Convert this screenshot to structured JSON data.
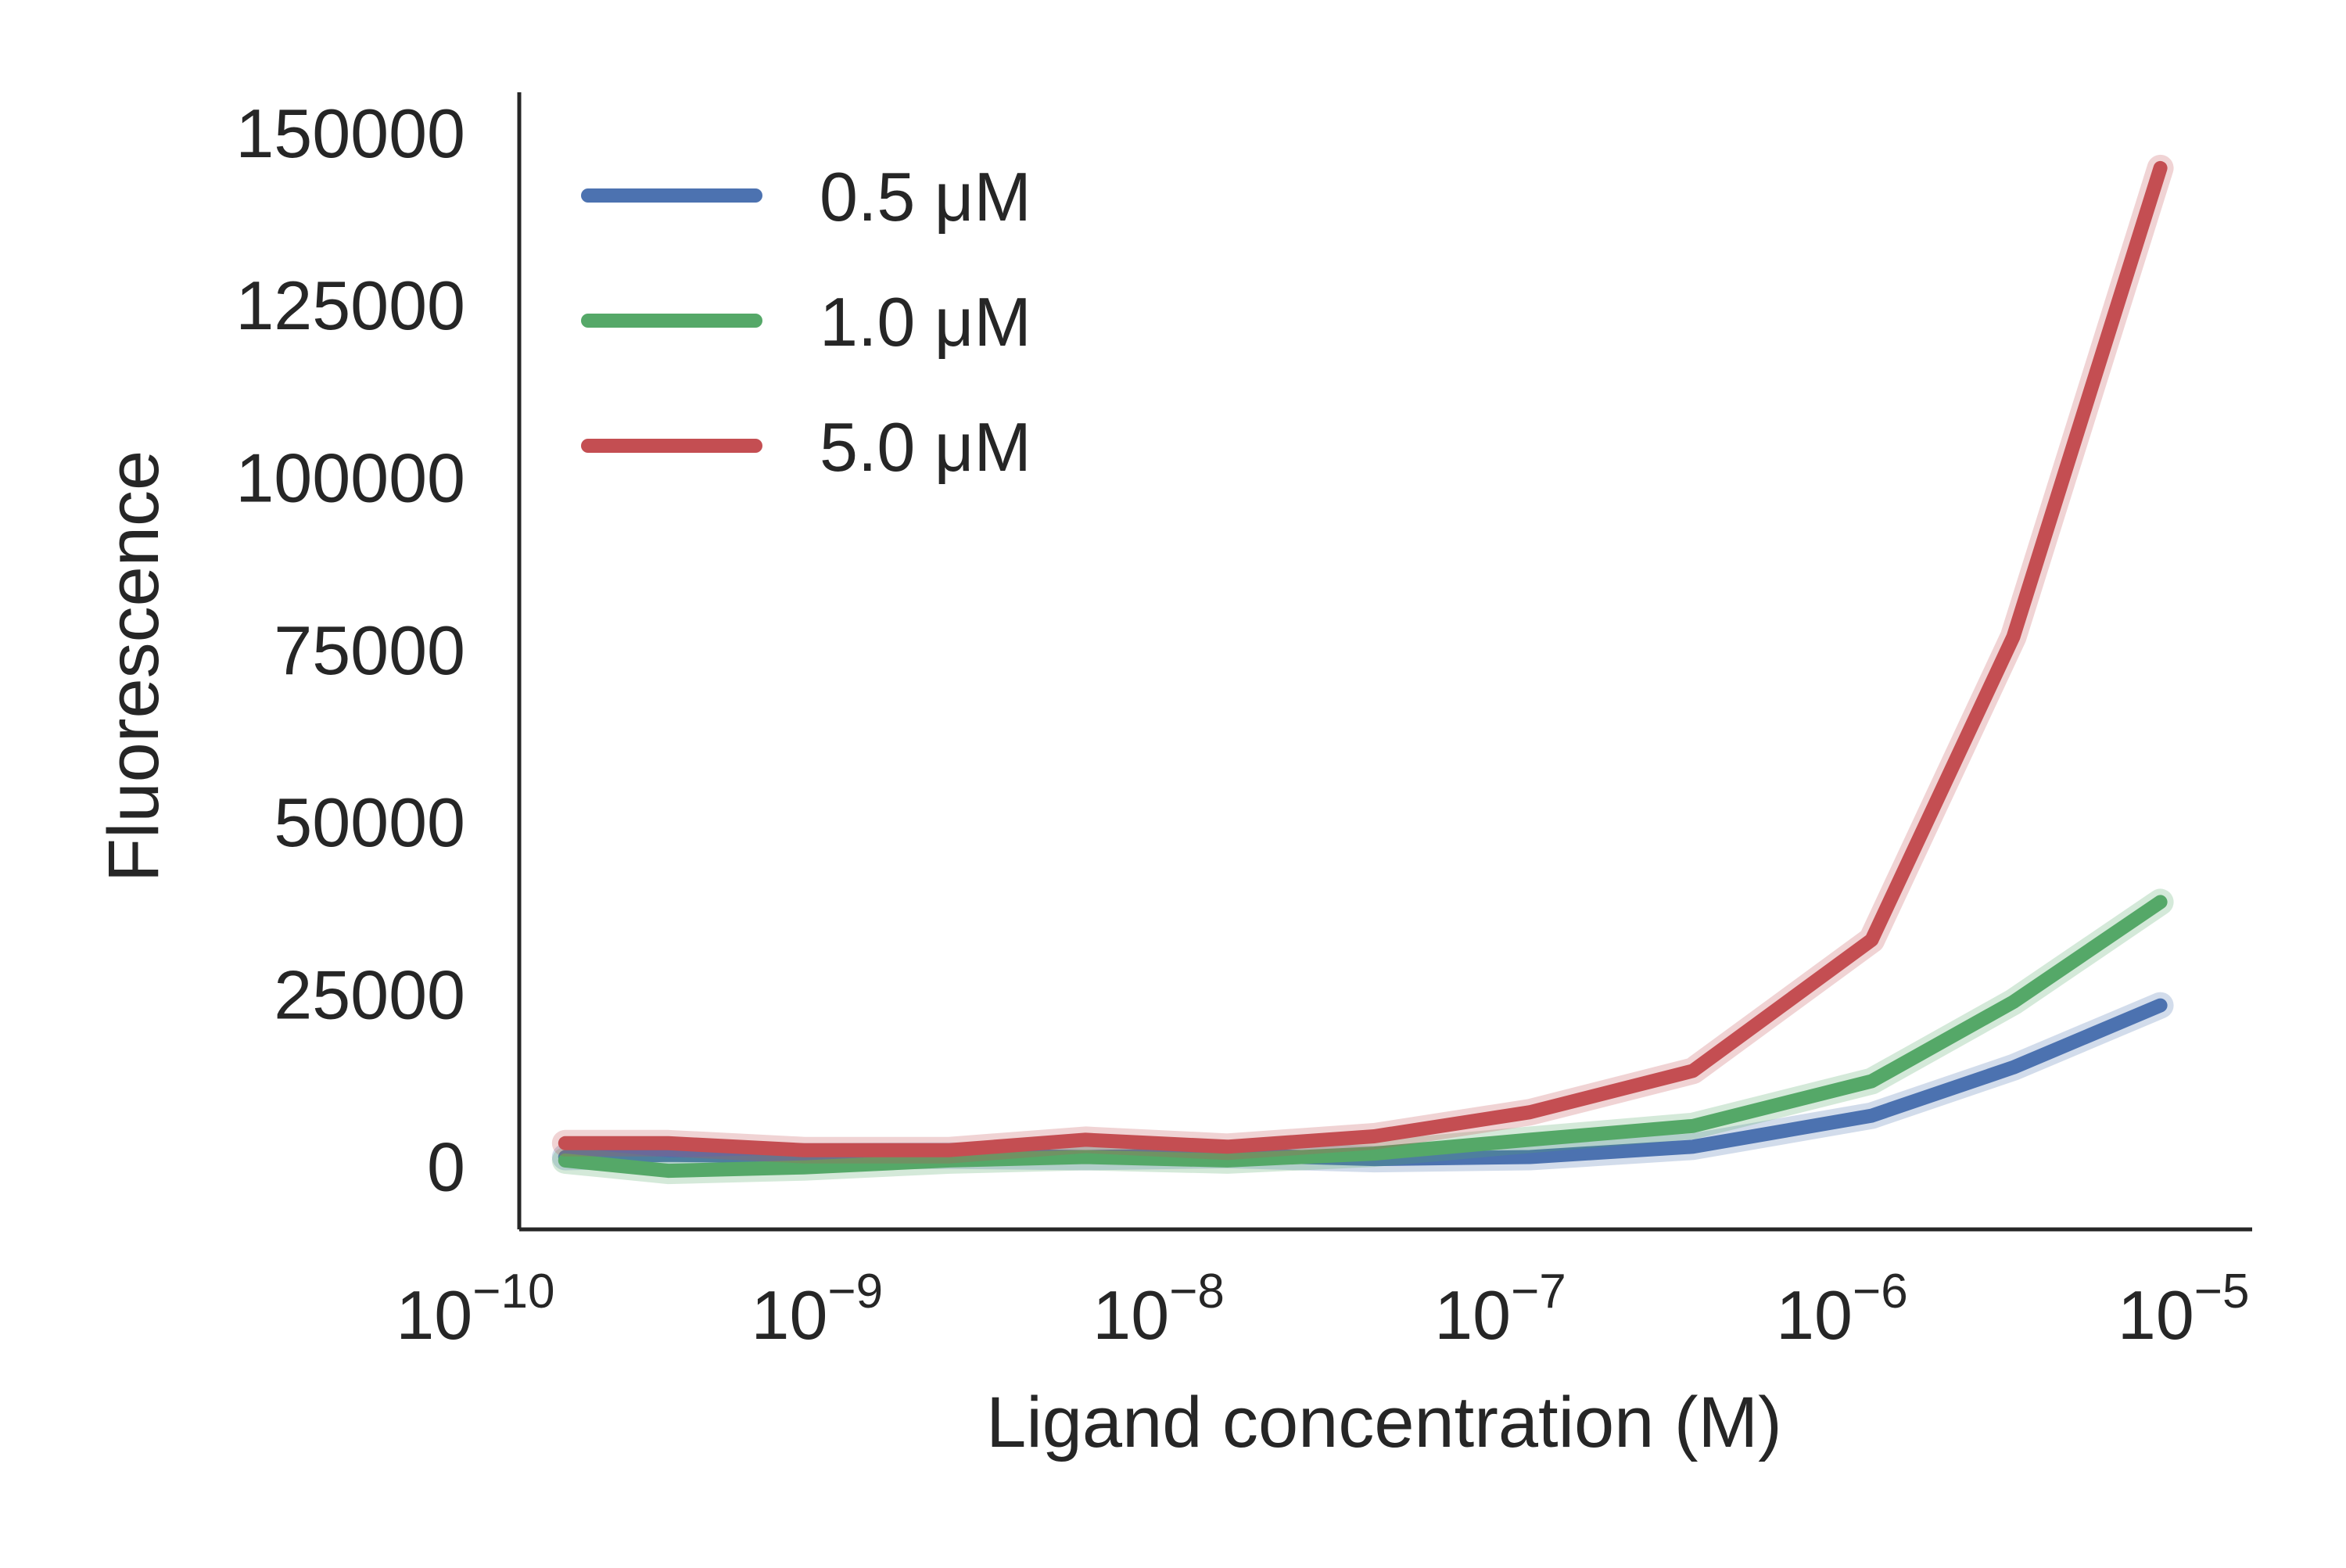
{
  "chart_data": {
    "type": "line",
    "title": "",
    "xlabel": "Ligand concentration (M)",
    "ylabel": "Fluorescence",
    "xscale": "log",
    "xlim": [
      1.1e-10,
      1.3e-05
    ],
    "ylim": [
      -9000,
      156000
    ],
    "grid": false,
    "legend_position": "top-left",
    "x_ticks": [
      {
        "base": "10",
        "exp": "−10",
        "value": 1e-10
      },
      {
        "base": "10",
        "exp": "−9",
        "value": 1e-09
      },
      {
        "base": "10",
        "exp": "−8",
        "value": 1e-08
      },
      {
        "base": "10",
        "exp": "−7",
        "value": 1e-07
      },
      {
        "base": "10",
        "exp": "−6",
        "value": 1e-06
      },
      {
        "base": "10",
        "exp": "−5",
        "value": 1e-05
      }
    ],
    "y_ticks": [
      {
        "label": "0",
        "value": 0
      },
      {
        "label": "25000",
        "value": 25000
      },
      {
        "label": "50000",
        "value": 50000
      },
      {
        "label": "75000",
        "value": 75000
      },
      {
        "label": "100000",
        "value": 100000
      },
      {
        "label": "125000",
        "value": 125000
      },
      {
        "label": "150000",
        "value": 150000
      }
    ],
    "x": [
      1.5e-10,
      3e-10,
      7.5e-10,
      2e-09,
      5e-09,
      1.3e-08,
      3.5e-08,
      1e-07,
      3e-07,
      1e-06,
      2.6e-06,
      7e-06
    ],
    "series": [
      {
        "name": "0.5 μM",
        "color": "#4c72b0",
        "values": [
          1500,
          1800,
          1600,
          1700,
          1500,
          1800,
          1200,
          1500,
          3000,
          7500,
          14500,
          23500
        ]
      },
      {
        "name": "1.0 μM",
        "color": "#55a868",
        "values": [
          1000,
          -500,
          0,
          1000,
          1500,
          1000,
          2000,
          4000,
          6000,
          12500,
          24000,
          38500
        ]
      },
      {
        "name": "5.0 μM",
        "color": "#c44e52",
        "values": [
          3500,
          3500,
          2500,
          2500,
          4000,
          3000,
          4500,
          8000,
          14000,
          33000,
          77000,
          145000
        ]
      }
    ]
  }
}
